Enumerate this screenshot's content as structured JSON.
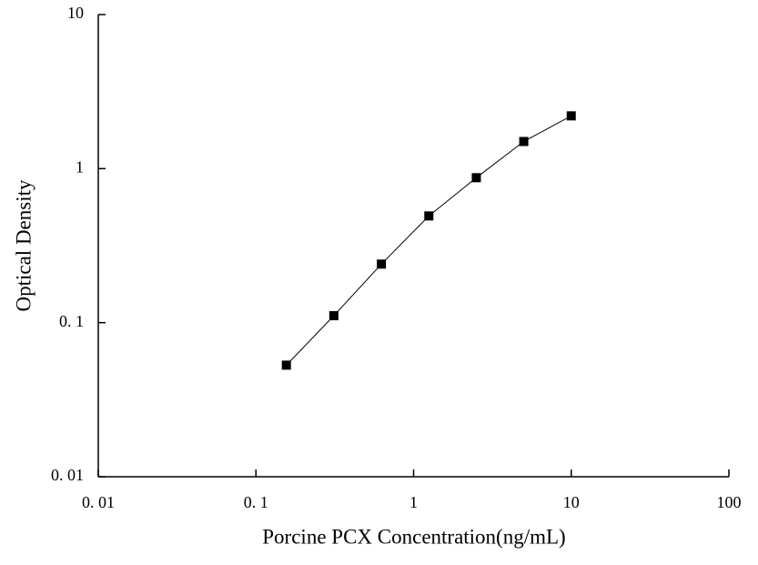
{
  "chart_data": {
    "type": "line",
    "x_label": "Porcine PCX Concentration(ng/mL)",
    "y_label": "Optical Density",
    "x": [
      0.156,
      0.312,
      0.625,
      1.25,
      2.5,
      5,
      10
    ],
    "series": [
      {
        "color": "#000000",
        "values": [
          0.053,
          0.111,
          0.24,
          0.493,
          0.873,
          1.5,
          2.2
        ]
      }
    ],
    "xlim": [
      0.01,
      100
    ],
    "ylim": [
      0.01,
      10
    ],
    "xscale": "log",
    "yscale": "log",
    "xticks": [
      {
        "value": 0.01,
        "label": "0. 01"
      },
      {
        "value": 0.1,
        "label": "0. 1"
      },
      1,
      10,
      100
    ],
    "yticks": [
      {
        "value": 0.01,
        "label": "0. 01"
      },
      {
        "value": 0.1,
        "label": "0. 1"
      },
      1,
      10
    ]
  }
}
